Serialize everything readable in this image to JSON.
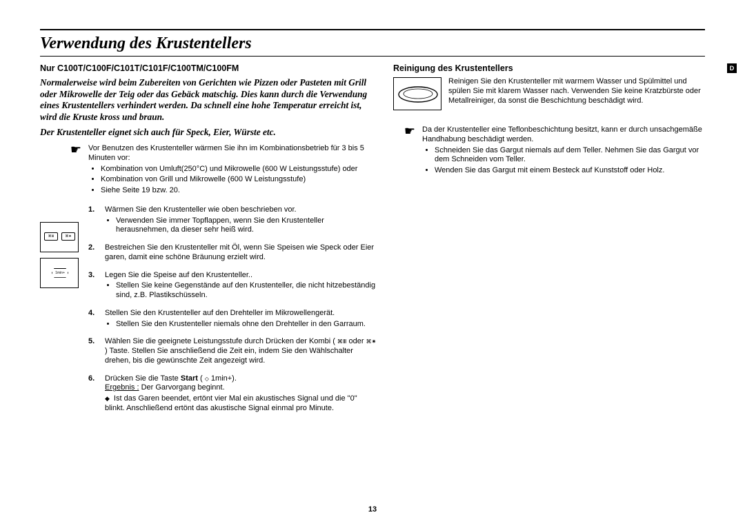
{
  "title": "Verwendung des Krustentellers",
  "left": {
    "models": "Nur C100T/C100F/C101T/C101F/C100TM/C100FM",
    "intro1": "Normalerweise wird beim Zubereiten von Gerichten wie Pizzen oder Pasteten mit Grill oder Mikrowelle der Teig oder das Gebäck matschig. Dies kann durch die Verwendung eines Krustentellers verhindert werden. Da schnell eine hohe Temperatur erreicht ist, wird die Kruste kross und braun.",
    "intro2": "Der Krustenteller eignet sich auch für Speck, Eier, Würste etc.",
    "hand_text": "Vor Benutzen des Krustenteller wärmen Sie ihn im Kombinationsbetrieb für 3 bis 5 Minuten vor:",
    "hand_bullets": [
      "Kombination von Umluft(250°C) und Mikrowelle (600 W Leistungsstufe) oder",
      "Kombination von Grill und Mikrowelle (600 W Leistungsstufe)",
      "Siehe Seite 19 bzw. 20."
    ],
    "steps": [
      {
        "n": "1.",
        "text": "Wärmen Sie den Krustenteller wie oben beschrieben vor.",
        "sub": [
          "Verwenden Sie immer Topflappen, wenn Sie den Krustenteller herausnehmen, da dieser sehr heiß wird."
        ]
      },
      {
        "n": "2.",
        "text": "Bestreichen Sie den Krustenteller mit Öl, wenn Sie Speisen wie Speck oder Eier garen, damit eine schöne Bräunung erzielt wird."
      },
      {
        "n": "3.",
        "text": "Legen Sie die Speise auf den Krustenteller..",
        "sub": [
          "Stellen Sie keine Gegenstände auf den Krustenteller, die nicht hitzebeständig sind, z.B. Plastikschüsseln."
        ]
      },
      {
        "n": "4.",
        "text": "Stellen Sie den Krustenteller auf den Drehteller im Mikrowellengerät.",
        "sub": [
          "Stellen Sie den Krustenteller niemals ohne den Drehteller in den Garraum."
        ]
      },
      {
        "n": "5.",
        "text_html": "Wählen Sie die geeignete Leistungsstufe durch Drücken der Kombi ( <span class='icon-glyph'>⌘Ⅲ</span> oder <span class='icon-glyph'>⌘✷</span> ) Taste. Stellen Sie anschließend die Zeit ein, indem Sie den Wählschalter drehen, bis die gewünschte Zeit angezeigt wird."
      },
      {
        "n": "6.",
        "text_html": "Drücken Sie die Taste <b>Start</b> ( <span class='icon-glyph'>◇</span> 1min+).<br><u>Ergebnis :</u> Der Garvorgang beginnt.",
        "diamond": [
          "Ist das Garen beendet, ertönt vier Mal ein akustisches Signal und die \"0\" blinkt. Anschließend ertönt das akustische Signal einmal pro Minute."
        ]
      }
    ]
  },
  "right": {
    "tag": "D",
    "heading": "Reinigung des Krustentellers",
    "clean_text": "Reinigen Sie den Krustenteller mit warmem Wasser und Spülmittel und spülen Sie mit klarem Wasser nach. Verwenden Sie keine Kratzbürste oder Metallreiniger, da sonst die Beschichtung beschädigt wird.",
    "hand_text": "Da der Krustenteller eine Teflonbeschichtung besitzt, kann er durch unsachgemäße Handhabung beschädigt werden.",
    "hand_bullets": [
      "Schneiden Sie das Gargut niemals auf dem Teller. Nehmen Sie das Gargut vor dem Schneiden vom Teller.",
      "Wenden Sie das Gargut mit einem Besteck auf Kunststoff oder Holz."
    ]
  },
  "page": "13"
}
